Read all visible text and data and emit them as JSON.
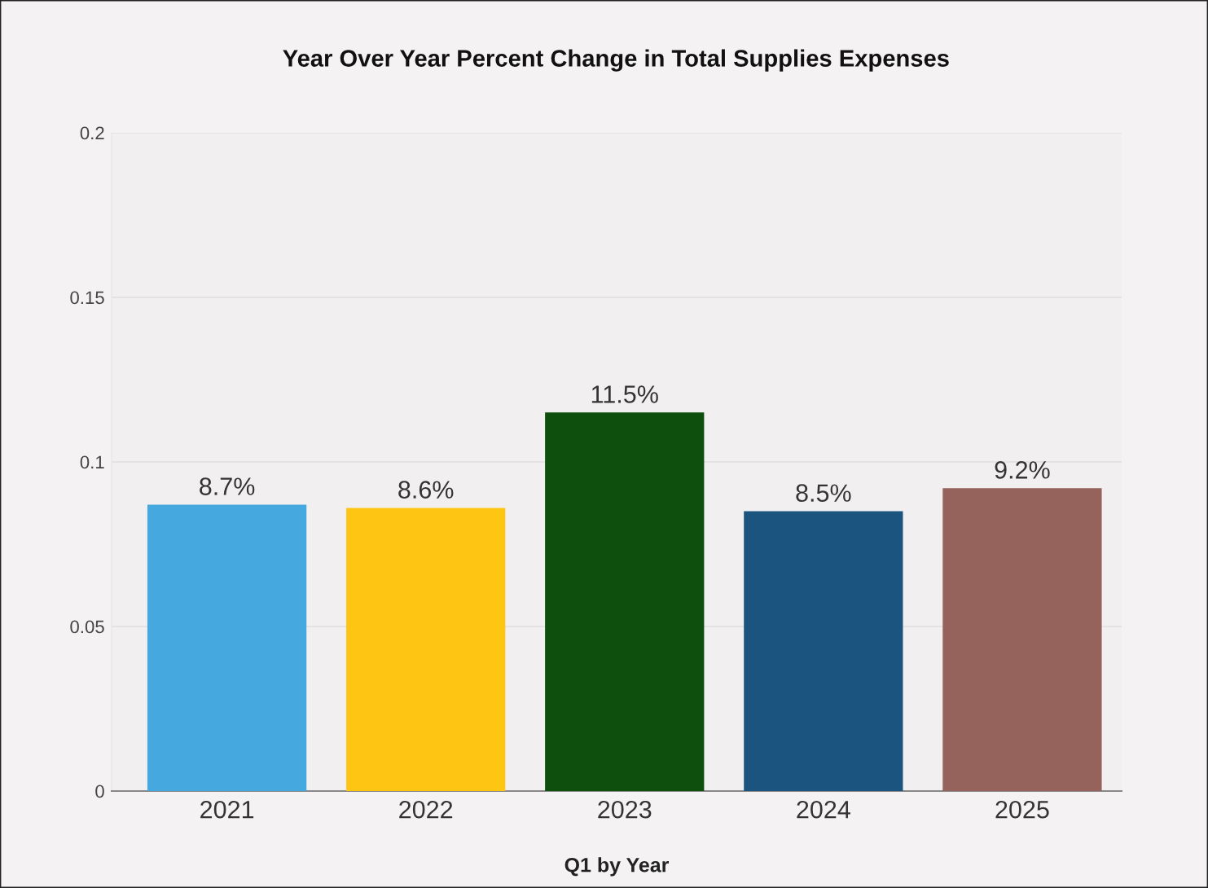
{
  "chart_data": {
    "type": "bar",
    "title": "Year Over Year Percent Change in Total Supplies Expenses",
    "xlabel": "Q1 by Year",
    "categories": [
      "2021",
      "2022",
      "2023",
      "2024",
      "2025"
    ],
    "values": [
      0.087,
      0.086,
      0.115,
      0.085,
      0.092
    ],
    "colors": [
      "#45a8de",
      "#fec513",
      "#0e4f0e",
      "#1b547e",
      "#95625c"
    ],
    "value_labels": [
      "8.7%",
      "8.6%",
      "11.5%",
      "8.5%",
      "9.2%"
    ],
    "ylim": [
      0,
      0.2
    ],
    "yticks": [
      0,
      0.05,
      0.1,
      0.15,
      0.2
    ],
    "grid": "y",
    "legend": false
  }
}
